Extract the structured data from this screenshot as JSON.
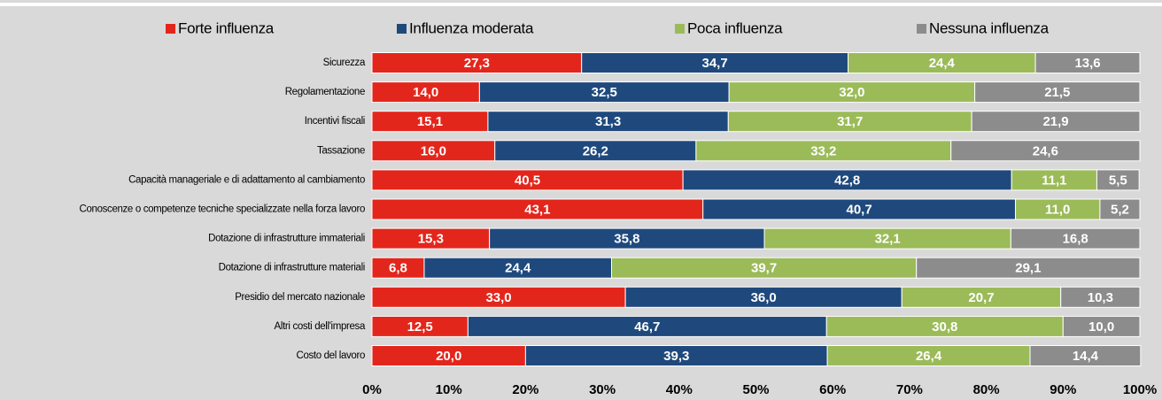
{
  "chart_data": {
    "type": "stacked-barh",
    "categories": [
      "Sicurezza",
      "Regolamentazione",
      "Incentivi fiscali",
      "Tassazione",
      "Capacità manageriale e di adattamento al cambiamento",
      "Conoscenze o competenze tecniche specializzate nella forza lavoro",
      "Dotazione di infrastrutture immateriali",
      "Dotazione di infrastrutture materiali",
      "Presidio del mercato nazionale",
      "Altri costi dell'impresa",
      "Costo del lavoro"
    ],
    "series": [
      {
        "name": "Forte influenza",
        "color": "#e3261c",
        "values": [
          27.3,
          14.0,
          15.1,
          16.0,
          40.5,
          43.1,
          15.3,
          6.8,
          33.0,
          12.5,
          20.0
        ],
        "value_labels": [
          "27,3",
          "14,0",
          "15,1",
          "16,0",
          "40,5",
          "43,1",
          "15,3",
          "6,8",
          "33,0",
          "12,5",
          "20,0"
        ]
      },
      {
        "name": "Influenza moderata",
        "color": "#1f497d",
        "values": [
          34.7,
          32.5,
          31.3,
          26.2,
          42.8,
          40.7,
          35.8,
          24.4,
          36.0,
          46.7,
          39.3
        ],
        "value_labels": [
          "34,7",
          "32,5",
          "31,3",
          "26,2",
          "42,8",
          "40,7",
          "35,8",
          "24,4",
          "36,0",
          "46,7",
          "39,3"
        ]
      },
      {
        "name": "Poca influenza",
        "color": "#9bbb59",
        "values": [
          24.4,
          32.0,
          31.7,
          33.2,
          11.1,
          11.0,
          32.1,
          39.7,
          20.7,
          30.8,
          26.4
        ],
        "value_labels": [
          "24,4",
          "32,0",
          "31,7",
          "33,2",
          "11,1",
          "11,0",
          "32,1",
          "39,7",
          "20,7",
          "30,8",
          "26,4"
        ]
      },
      {
        "name": "Nessuna influenza",
        "color": "#8c8c8c",
        "values": [
          13.6,
          21.5,
          21.9,
          24.6,
          5.5,
          5.2,
          16.8,
          29.1,
          10.3,
          10.0,
          14.4
        ],
        "value_labels": [
          "13,6",
          "21,5",
          "21,9",
          "24,6",
          "5,5",
          "5,2",
          "16,8",
          "29,1",
          "10,3",
          "10,0",
          "14,4"
        ]
      }
    ],
    "xlim": [
      0,
      100
    ],
    "xticks": [
      {
        "value": 0,
        "label": "0%"
      },
      {
        "value": 10,
        "label": "10%"
      },
      {
        "value": 20,
        "label": "20%"
      },
      {
        "value": 30,
        "label": "30%"
      },
      {
        "value": 40,
        "label": "40%"
      },
      {
        "value": 50,
        "label": "50%"
      },
      {
        "value": 60,
        "label": "60%"
      },
      {
        "value": 70,
        "label": "70%"
      },
      {
        "value": 80,
        "label": "80%"
      },
      {
        "value": 90,
        "label": "90%"
      },
      {
        "value": 100,
        "label": "100%"
      }
    ],
    "legend": "top"
  }
}
